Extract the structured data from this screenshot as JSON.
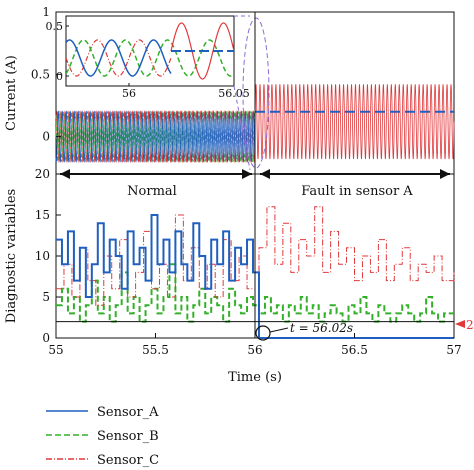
{
  "chart_data": [
    {
      "id": "top",
      "type": "line",
      "ylabel": "Current (A)",
      "xlim": [
        55,
        57
      ],
      "ylim": [
        -0.3,
        1
      ],
      "yticks": [
        0,
        0.5,
        1
      ],
      "regions": [
        {
          "label": "",
          "x": [
            55,
            56
          ],
          "amplitude_range": [
            -0.2,
            0.2
          ]
        },
        {
          "label": "",
          "x": [
            56,
            57
          ],
          "amplitude_range": [
            -0.2,
            0.45
          ]
        }
      ],
      "sensor_a_fault_level": 0.2,
      "inset": {
        "xlim": [
          55.97,
          56.05
        ],
        "ylim": [
          -0.1,
          0.6
        ],
        "xticks": [
          56,
          56.05
        ],
        "yticks": [
          0,
          0.5
        ],
        "tick_labels_x": [
          "56",
          "56.05"
        ],
        "tick_labels_y": [
          "0",
          "0.5"
        ]
      }
    },
    {
      "id": "bottom",
      "type": "line",
      "xlabel": "Time (s)",
      "ylabel": "Diagnostic variables",
      "xlim": [
        55,
        57
      ],
      "ylim": [
        0,
        20
      ],
      "xticks": [
        55,
        55.5,
        56,
        56.5,
        57
      ],
      "xtick_labels": [
        "55",
        "55.5",
        "56",
        "56.5",
        "57"
      ],
      "yticks": [
        0,
        5,
        10,
        15,
        20
      ],
      "ytick_labels": [
        "0",
        "5",
        "10",
        "15",
        "20"
      ],
      "threshold": 2,
      "threshold_label": "2",
      "fault_time": 56.02,
      "fault_annotation": "t = 56.02s",
      "phase_labels": [
        "Normal",
        "Fault in sensor A"
      ],
      "series": [
        {
          "name": "Sensor_A",
          "color": "#1f5fbf",
          "style": "solid",
          "steps": [
            [
              55,
              12
            ],
            [
              55.03,
              9
            ],
            [
              55.06,
              13
            ],
            [
              55.09,
              7
            ],
            [
              55.12,
              11
            ],
            [
              55.15,
              5
            ],
            [
              55.18,
              9
            ],
            [
              55.21,
              14
            ],
            [
              55.24,
              8
            ],
            [
              55.27,
              12
            ],
            [
              55.3,
              10
            ],
            [
              55.33,
              6
            ],
            [
              55.36,
              13
            ],
            [
              55.39,
              9
            ],
            [
              55.42,
              11
            ],
            [
              55.45,
              7
            ],
            [
              55.48,
              15
            ],
            [
              55.51,
              9
            ],
            [
              55.54,
              12
            ],
            [
              55.57,
              8
            ],
            [
              55.6,
              13
            ],
            [
              55.63,
              9
            ],
            [
              55.66,
              7
            ],
            [
              55.69,
              14
            ],
            [
              55.72,
              10
            ],
            [
              55.75,
              6
            ],
            [
              55.78,
              12
            ],
            [
              55.81,
              9
            ],
            [
              55.84,
              13
            ],
            [
              55.87,
              7
            ],
            [
              55.9,
              11
            ],
            [
              55.93,
              9
            ],
            [
              55.96,
              12
            ],
            [
              55.99,
              8
            ],
            [
              56.02,
              0
            ],
            [
              57,
              0
            ]
          ]
        },
        {
          "name": "Sensor_B",
          "color": "#33b02a",
          "style": "dashed",
          "steps": [
            [
              55,
              4
            ],
            [
              55.03,
              6
            ],
            [
              55.06,
              3
            ],
            [
              55.09,
              5
            ],
            [
              55.12,
              2
            ],
            [
              55.15,
              4
            ],
            [
              55.18,
              7
            ],
            [
              55.21,
              3
            ],
            [
              55.24,
              5
            ],
            [
              55.27,
              2
            ],
            [
              55.3,
              4
            ],
            [
              55.33,
              8
            ],
            [
              55.36,
              3
            ],
            [
              55.39,
              5
            ],
            [
              55.42,
              2
            ],
            [
              55.45,
              4
            ],
            [
              55.48,
              6
            ],
            [
              55.51,
              3
            ],
            [
              55.54,
              5
            ],
            [
              55.57,
              9
            ],
            [
              55.6,
              3
            ],
            [
              55.63,
              5
            ],
            [
              55.66,
              2
            ],
            [
              55.69,
              4
            ],
            [
              55.72,
              6
            ],
            [
              55.75,
              3
            ],
            [
              55.78,
              5
            ],
            [
              55.81,
              4
            ],
            [
              55.84,
              2
            ],
            [
              55.87,
              6
            ],
            [
              55.9,
              4
            ],
            [
              55.93,
              3
            ],
            [
              55.96,
              5
            ],
            [
              55.99,
              4
            ],
            [
              56.02,
              3
            ],
            [
              56.05,
              5
            ],
            [
              56.08,
              3
            ],
            [
              56.11,
              4
            ],
            [
              56.14,
              2
            ],
            [
              56.17,
              4
            ],
            [
              56.2,
              3
            ],
            [
              56.23,
              5
            ],
            [
              56.26,
              3
            ],
            [
              56.29,
              4
            ],
            [
              56.32,
              2
            ],
            [
              56.35,
              3
            ],
            [
              56.38,
              4
            ],
            [
              56.41,
              3
            ],
            [
              56.44,
              2
            ],
            [
              56.47,
              4
            ],
            [
              56.5,
              3
            ],
            [
              56.53,
              5
            ],
            [
              56.56,
              3
            ],
            [
              56.59,
              2
            ],
            [
              56.62,
              4
            ],
            [
              56.65,
              3
            ],
            [
              56.68,
              2
            ],
            [
              56.71,
              3
            ],
            [
              56.74,
              4
            ],
            [
              56.77,
              3
            ],
            [
              56.8,
              2
            ],
            [
              56.83,
              3
            ],
            [
              56.86,
              5
            ],
            [
              56.89,
              3
            ],
            [
              56.92,
              2
            ],
            [
              56.95,
              3
            ],
            [
              57,
              3
            ]
          ]
        },
        {
          "name": "Sensor_C",
          "color": "#e0393c",
          "style": "dashdot",
          "steps": [
            [
              55,
              6
            ],
            [
              55.04,
              9
            ],
            [
              55.08,
              5
            ],
            [
              55.12,
              11
            ],
            [
              55.16,
              7
            ],
            [
              55.2,
              4
            ],
            [
              55.24,
              10
            ],
            [
              55.28,
              6
            ],
            [
              55.32,
              12
            ],
            [
              55.36,
              5
            ],
            [
              55.4,
              8
            ],
            [
              55.44,
              13
            ],
            [
              55.48,
              6
            ],
            [
              55.52,
              9
            ],
            [
              55.56,
              5
            ],
            [
              55.6,
              15
            ],
            [
              55.64,
              7
            ],
            [
              55.68,
              11
            ],
            [
              55.72,
              6
            ],
            [
              55.76,
              9
            ],
            [
              55.8,
              5
            ],
            [
              55.84,
              12
            ],
            [
              55.88,
              7
            ],
            [
              55.92,
              10
            ],
            [
              55.96,
              6
            ],
            [
              56.0,
              8
            ],
            [
              56.02,
              11
            ],
            [
              56.06,
              16
            ],
            [
              56.1,
              9
            ],
            [
              56.14,
              14
            ],
            [
              56.18,
              8
            ],
            [
              56.22,
              12
            ],
            [
              56.26,
              10
            ],
            [
              56.3,
              16
            ],
            [
              56.34,
              8
            ],
            [
              56.38,
              13
            ],
            [
              56.42,
              9
            ],
            [
              56.46,
              11
            ],
            [
              56.5,
              7
            ],
            [
              56.54,
              10
            ],
            [
              56.58,
              8
            ],
            [
              56.62,
              12
            ],
            [
              56.66,
              7
            ],
            [
              56.7,
              9
            ],
            [
              56.74,
              11
            ],
            [
              56.78,
              7
            ],
            [
              56.82,
              9
            ],
            [
              56.86,
              8
            ],
            [
              56.9,
              10
            ],
            [
              56.94,
              7
            ],
            [
              57,
              8
            ]
          ]
        }
      ]
    }
  ],
  "legend": [
    {
      "name": "Sensor_A",
      "color": "#1f5fbf",
      "style": "solid"
    },
    {
      "name": "Sensor_B",
      "color": "#33b02a",
      "style": "dashed"
    },
    {
      "name": "Sensor_C",
      "color": "#e0393c",
      "style": "dashdot"
    }
  ]
}
